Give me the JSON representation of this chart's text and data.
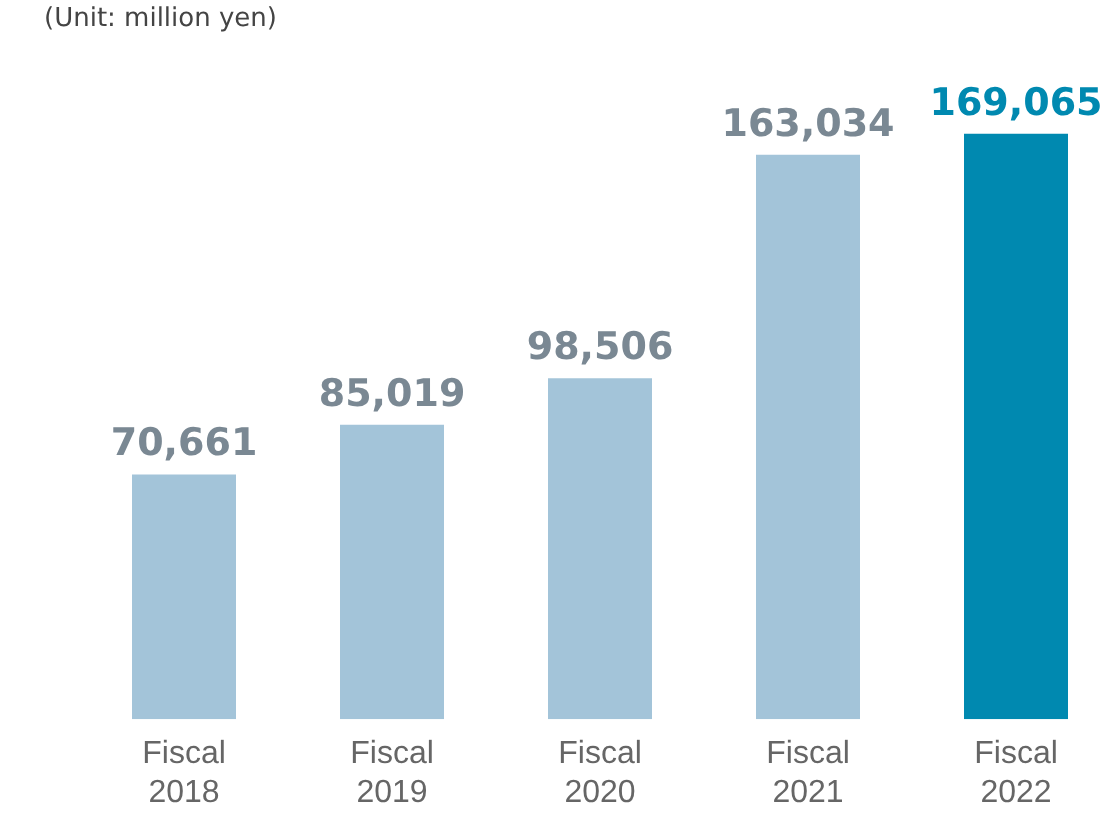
{
  "chart_data": {
    "type": "bar",
    "annotations": [
      "(Unit: million yen)"
    ],
    "categories": [
      "Fiscal 2018",
      "Fiscal 2019",
      "Fiscal 2020",
      "Fiscal 2021",
      "Fiscal 2022"
    ],
    "values": [
      70661,
      85019,
      98506,
      163034,
      169065
    ],
    "colors": [
      "#a3c4d9",
      "#a3c4d9",
      "#a3c4d9",
      "#a3c4d9",
      "#0089b0"
    ],
    "value_labels": [
      "70,661",
      "85,019",
      "98,506",
      "163,034",
      "169,065"
    ],
    "grid": false,
    "legend": false
  }
}
